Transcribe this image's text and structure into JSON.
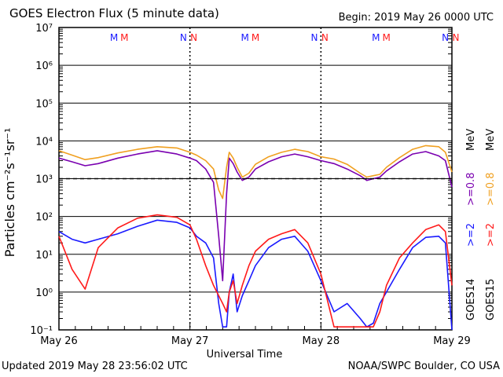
{
  "header": {
    "title": "GOES Electron Flux (5 minute data)",
    "begin": "Begin: 2019 May 26 0000 UTC"
  },
  "footer": {
    "updated": "Updated 2019 May 28 23:56:02 UTC",
    "credit": "NOAA/SWPC Boulder, CO USA"
  },
  "colors": {
    "goes14_2mev": "#1a1aff",
    "goes15_2mev": "#ff1a1a",
    "goes14_08mev": "#7a00b0",
    "goes15_08mev": "#f0a020",
    "marker_m": "#1a1aff",
    "marker_n": "#ff1a1a"
  },
  "chart_data": {
    "type": "line",
    "title": "GOES Electron Flux (5 minute data)",
    "xlabel": "Universal Time",
    "ylabel": "Particles cm⁻²s⁻¹sr⁻¹",
    "yscale": "log",
    "ylim": [
      0.1,
      10000000
    ],
    "xlim": [
      0,
      3
    ],
    "x_tick_labels": [
      "May 26",
      "May 27",
      "May 28",
      "May 29"
    ],
    "y_tick_labels": [
      "10⁻¹",
      "10⁰",
      "10¹",
      "10²",
      "10³",
      "10⁴",
      "10⁵",
      "10⁶",
      "10⁷"
    ],
    "threshold_line": 1000,
    "grid": true,
    "legend_right": [
      "GOES14",
      ">=2",
      ">=0.8",
      "MeV",
      "GOES15",
      ">=2",
      ">=0.8",
      "MeV"
    ],
    "markers": [
      {
        "label": "M",
        "x": 0.42,
        "color": "blue"
      },
      {
        "label": "M",
        "x": 0.5,
        "color": "red"
      },
      {
        "label": "N",
        "x": 0.95,
        "color": "blue"
      },
      {
        "label": "N",
        "x": 1.03,
        "color": "red"
      },
      {
        "label": "M",
        "x": 1.42,
        "color": "blue"
      },
      {
        "label": "M",
        "x": 1.5,
        "color": "red"
      },
      {
        "label": "N",
        "x": 1.95,
        "color": "blue"
      },
      {
        "label": "N",
        "x": 2.03,
        "color": "red"
      },
      {
        "label": "M",
        "x": 2.42,
        "color": "blue"
      },
      {
        "label": "M",
        "x": 2.5,
        "color": "red"
      },
      {
        "label": "N",
        "x": 2.95,
        "color": "blue"
      },
      {
        "label": "N",
        "x": 3.03,
        "color": "red"
      }
    ],
    "series": [
      {
        "label": "GOES14 >=0.8 MeV",
        "color": "#7a00b0",
        "x": [
          0,
          0.1,
          0.2,
          0.3,
          0.45,
          0.6,
          0.75,
          0.9,
          1.0,
          1.05,
          1.12,
          1.18,
          1.22,
          1.25,
          1.28,
          1.3,
          1.33,
          1.36,
          1.4,
          1.45,
          1.5,
          1.6,
          1.7,
          1.8,
          1.9,
          2.0,
          2.1,
          2.2,
          2.3,
          2.35,
          2.4,
          2.45,
          2.5,
          2.6,
          2.7,
          2.8,
          2.9,
          2.95,
          3.0
        ],
        "y": [
          3500,
          2800,
          2200,
          2500,
          3500,
          4500,
          5500,
          4500,
          3500,
          3000,
          1800,
          800,
          30,
          2,
          400,
          3500,
          2500,
          1500,
          900,
          1100,
          1800,
          2800,
          3800,
          4500,
          3800,
          3000,
          2500,
          1800,
          1200,
          900,
          1000,
          1100,
          1600,
          2800,
          4500,
          5200,
          4000,
          3000,
          600
        ]
      },
      {
        "label": "GOES15 >=0.8 MeV",
        "color": "#f0a020",
        "x": [
          0,
          0.1,
          0.2,
          0.3,
          0.45,
          0.6,
          0.75,
          0.9,
          1.0,
          1.05,
          1.12,
          1.18,
          1.22,
          1.25,
          1.28,
          1.3,
          1.33,
          1.36,
          1.4,
          1.45,
          1.5,
          1.6,
          1.7,
          1.8,
          1.9,
          2.0,
          2.1,
          2.2,
          2.3,
          2.35,
          2.4,
          2.45,
          2.5,
          2.6,
          2.7,
          2.8,
          2.9,
          2.95,
          3.0
        ],
        "y": [
          5500,
          4200,
          3200,
          3600,
          4800,
          6000,
          7000,
          6500,
          5000,
          4200,
          3000,
          1800,
          500,
          300,
          2000,
          5000,
          3500,
          2000,
          1100,
          1400,
          2400,
          3800,
          5000,
          6000,
          5200,
          3800,
          3300,
          2400,
          1400,
          1100,
          1200,
          1300,
          2000,
          3600,
          6000,
          7500,
          7000,
          5000,
          1500
        ]
      },
      {
        "label": "GOES14 >=2 MeV",
        "color": "#1a1aff",
        "x": [
          0,
          0.1,
          0.2,
          0.3,
          0.45,
          0.6,
          0.75,
          0.9,
          1.0,
          1.05,
          1.12,
          1.18,
          1.22,
          1.25,
          1.28,
          1.3,
          1.33,
          1.36,
          1.4,
          1.45,
          1.5,
          1.6,
          1.7,
          1.8,
          1.9,
          2.0,
          2.1,
          2.2,
          2.3,
          2.35,
          2.4,
          2.45,
          2.5,
          2.6,
          2.7,
          2.8,
          2.9,
          2.95,
          3.0
        ],
        "y": [
          40,
          25,
          20,
          25,
          35,
          55,
          80,
          70,
          50,
          30,
          20,
          8,
          0.5,
          0.12,
          0.12,
          1,
          3,
          0.3,
          0.8,
          2,
          5,
          15,
          25,
          30,
          12,
          2,
          0.3,
          0.5,
          0.2,
          0.12,
          0.15,
          0.5,
          1,
          4,
          15,
          28,
          30,
          20,
          0.1
        ]
      },
      {
        "label": "GOES15 >=2 MeV",
        "color": "#ff1a1a",
        "x": [
          0,
          0.1,
          0.2,
          0.3,
          0.45,
          0.6,
          0.75,
          0.9,
          1.0,
          1.05,
          1.12,
          1.18,
          1.22,
          1.25,
          1.28,
          1.3,
          1.33,
          1.36,
          1.4,
          1.45,
          1.5,
          1.6,
          1.7,
          1.8,
          1.9,
          2.0,
          2.1,
          2.2,
          2.3,
          2.35,
          2.4,
          2.45,
          2.5,
          2.6,
          2.7,
          2.8,
          2.9,
          2.95,
          3.0
        ],
        "y": [
          30,
          4,
          1.2,
          15,
          50,
          90,
          110,
          95,
          60,
          25,
          5,
          1.5,
          0.8,
          0.5,
          0.3,
          1,
          2,
          0.5,
          1.5,
          5,
          12,
          25,
          35,
          45,
          20,
          3,
          0.12,
          0.12,
          0.12,
          0.12,
          0.12,
          0.3,
          1.5,
          8,
          20,
          45,
          60,
          40,
          1.5
        ]
      }
    ]
  }
}
